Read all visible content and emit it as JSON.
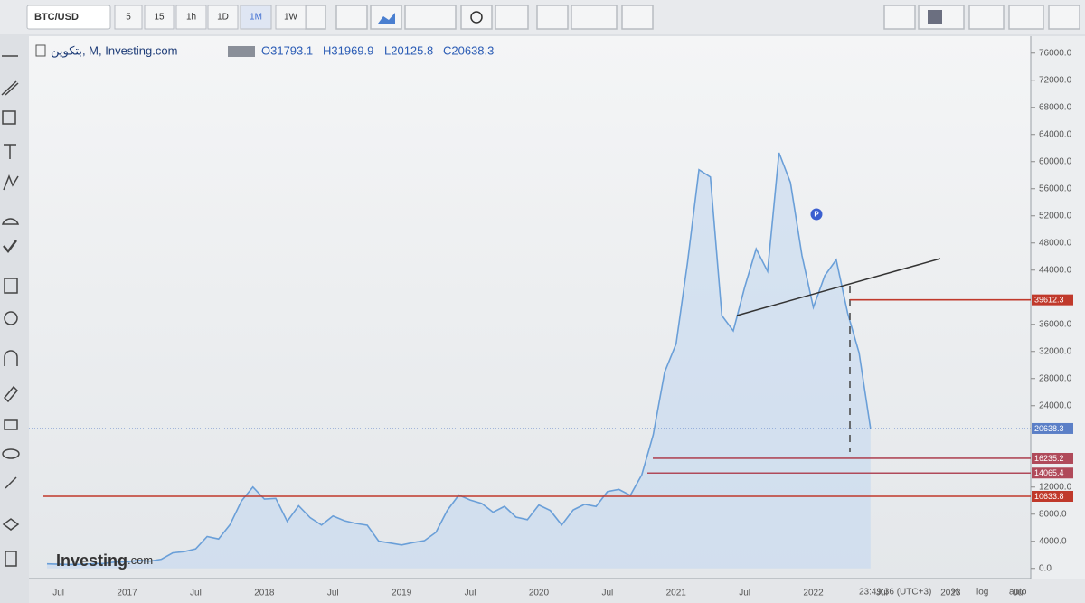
{
  "toolbar": {
    "symbol": "BTC/USD",
    "intervals": [
      "5",
      "15",
      "1h",
      "1D",
      "1M",
      "1W"
    ]
  },
  "legend": {
    "name": "بتكوين, M, Investing.com",
    "open": "O31793.1",
    "high": "H31969.9",
    "low": "L20125.8",
    "close": "C20638.3"
  },
  "watermark": {
    "brand": "Investing",
    "suffix": ".com"
  },
  "status_bar": {
    "time": "23:49:36 (UTC+3)",
    "percent": "%",
    "log": "log",
    "auto": "auto"
  },
  "chart_data": {
    "type": "area",
    "color": "#6a9fd8",
    "fill": "#c4d9f0",
    "categories": [
      null,
      "Jul",
      null,
      null,
      null,
      null,
      null,
      "2017",
      null,
      null,
      null,
      null,
      null,
      "Jul",
      null,
      null,
      null,
      null,
      null,
      "2018",
      null,
      null,
      null,
      null,
      null,
      "Jul",
      null,
      null,
      null,
      null,
      null,
      "2019",
      null,
      null,
      null,
      null,
      null,
      "Jul",
      null,
      null,
      null,
      null,
      null,
      "2020",
      null,
      null,
      null,
      null,
      null,
      "Jul",
      null,
      null,
      null,
      null,
      null,
      "2021",
      null,
      null,
      null,
      null,
      null,
      "Jul",
      null,
      null,
      null,
      null,
      null,
      "2022",
      null,
      null,
      null,
      null,
      null,
      "Jul",
      null,
      null,
      null,
      null,
      null,
      "2023",
      null,
      null,
      null,
      null,
      null,
      "Jul"
    ],
    "values": [
      670,
      620,
      575,
      610,
      700,
      740,
      960,
      970,
      1190,
      1080,
      1350,
      2300,
      2480,
      2880,
      4700,
      4340,
      6450,
      9950,
      12000,
      10220,
      10330,
      6930,
      9240,
      7500,
      6400,
      7730,
      7030,
      6630,
      6370,
      4020,
      3740,
      3460,
      3810,
      4100,
      5320,
      8570,
      10820,
      10080,
      9590,
      8290,
      9150,
      7570,
      7190,
      9350,
      8540,
      6410,
      8620,
      9450,
      9140,
      11330,
      11650,
      10780,
      13800,
      19700,
      28950,
      33110,
      45140,
      58800,
      57720,
      37300,
      35040,
      41500,
      47130,
      43820,
      61300,
      56900,
      46200,
      38500,
      43180,
      45530,
      37640,
      31793.1,
      20638.3,
      null,
      null,
      null,
      null,
      null,
      null,
      null,
      null,
      null,
      null,
      null,
      null,
      null
    ],
    "ylim": [
      -1500,
      78500
    ],
    "yticks": [
      {
        "value": 0,
        "label": "0.0"
      },
      {
        "value": 4000,
        "label": "4000.0"
      },
      {
        "value": 8000,
        "label": "8000.0"
      },
      {
        "value": 12000,
        "label": "12000.0"
      },
      {
        "value": 24000,
        "label": "24000.0"
      },
      {
        "value": 28000,
        "label": "28000.0"
      },
      {
        "value": 32000,
        "label": "32000.0"
      },
      {
        "value": 36000,
        "label": "36000.0"
      },
      {
        "value": 44000,
        "label": "44000.0"
      },
      {
        "value": 48000,
        "label": "48000.0"
      },
      {
        "value": 52000,
        "label": "52000.0"
      },
      {
        "value": 56000,
        "label": "56000.0"
      },
      {
        "value": 60000,
        "label": "60000.0"
      },
      {
        "value": 64000,
        "label": "64000.0"
      },
      {
        "value": 68000,
        "label": "68000.0"
      },
      {
        "value": 72000,
        "label": "72000.0"
      },
      {
        "value": 76000,
        "label": "76000.0"
      }
    ],
    "price_lines": [
      {
        "value": 39612.3,
        "color": "#c0392b"
      },
      {
        "value": 20638.3,
        "color": "#5b7fc7"
      },
      {
        "value": 16235.2,
        "color": "#b04a5a"
      },
      {
        "value": 14065.4,
        "color": "#b04a5a"
      },
      {
        "value": 10633.8,
        "color": "#c0392b"
      }
    ]
  }
}
